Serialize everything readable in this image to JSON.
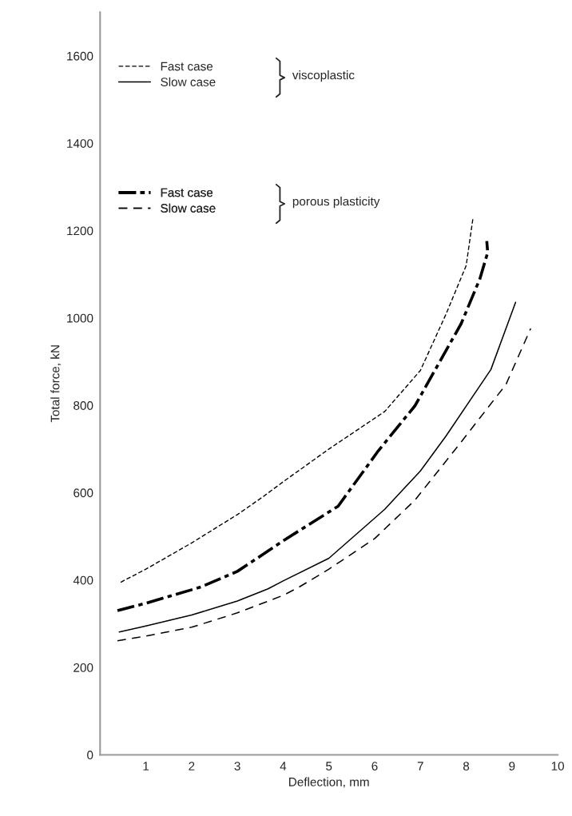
{
  "chart_data": {
    "type": "line",
    "xlabel": "Deflection, mm",
    "ylabel": "Total force, kN",
    "xlim": [
      0,
      10
    ],
    "xticks": [
      1,
      2,
      3,
      4,
      5,
      6,
      7,
      8,
      9,
      10
    ],
    "ylim": [
      0,
      1700
    ],
    "yticks": [
      0,
      200,
      400,
      600,
      800,
      1000,
      1200,
      1400,
      1600
    ],
    "grid": false,
    "legend": "top left",
    "annotations": [
      "viscoplastic",
      "porous plasticity"
    ],
    "series": [
      {
        "name": "Fast case",
        "color": "#000000",
        "line_style": "dashed",
        "x": [
          0.45,
          1,
          2,
          3,
          3.55,
          4,
          5,
          6.22,
          7,
          7.56,
          8,
          8.15
        ],
        "values": [
          395,
          425,
          485,
          550,
          590,
          625,
          700,
          786,
          880,
          1009,
          1120,
          1230
        ]
      },
      {
        "name": "Slow case",
        "color": "#000000",
        "line_style": "solid",
        "x": [
          0.42,
          1,
          2,
          3,
          3.67,
          4,
          5,
          6.22,
          7,
          7.56,
          8.54,
          9.08
        ],
        "values": [
          281,
          295,
          320,
          352,
          380,
          398,
          450,
          562,
          650,
          730,
          882,
          1036
        ]
      },
      {
        "name": "Fast case",
        "color": "#000000",
        "line_style": "dashed",
        "x": [
          0.38,
          1,
          2.2,
          3,
          3.55,
          4,
          5.2,
          6.08,
          6.88,
          7.89,
          8.3,
          8.47,
          8.45
        ],
        "values": [
          330,
          347,
          384,
          420,
          458,
          490,
          569,
          696,
          799,
          987,
          1090,
          1150,
          1176
        ]
      },
      {
        "name": "Slow case",
        "color": "#000000",
        "line_style": "dashed",
        "x": [
          0.38,
          1,
          2,
          3,
          4,
          4.35,
          5,
          6,
          6.88,
          7.89,
          8.87,
          9.41
        ],
        "values": [
          261,
          272,
          292,
          325,
          365,
          384,
          425,
          495,
          583,
          716,
          848,
          976
        ]
      }
    ]
  }
}
